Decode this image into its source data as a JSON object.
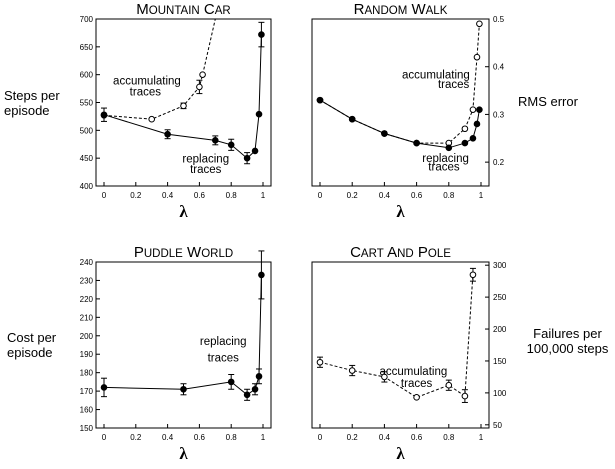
{
  "chart_data": [
    {
      "id": "mc",
      "type": "line",
      "title": "MOUNTAIN CAR",
      "xlabel": "λ",
      "ylabel": "Steps per episode",
      "xlim": [
        0,
        1
      ],
      "ylim": [
        400,
        700
      ],
      "xticks": [
        "0",
        "0.2",
        "0.4",
        "0.6",
        "0.8",
        "1"
      ],
      "yticks": [
        "400",
        "450",
        "500",
        "550",
        "600",
        "650",
        "700"
      ],
      "series": [
        {
          "name": "accumulating traces",
          "style": "dashed-open",
          "x": [
            0,
            0.3,
            0.5,
            0.6,
            0.62,
            0.7
          ],
          "y": [
            527,
            520,
            544,
            578,
            600,
            700
          ],
          "err": [
            0,
            0,
            5,
            12,
            0,
            0
          ]
        },
        {
          "name": "replacing traces",
          "style": "solid-filled",
          "x": [
            0,
            0.4,
            0.7,
            0.8,
            0.9,
            0.95,
            0.975,
            0.99
          ],
          "y": [
            528,
            493,
            482,
            474,
            450,
            463,
            529,
            672
          ],
          "err": [
            12,
            8,
            8,
            10,
            10,
            0,
            0,
            22
          ]
        }
      ],
      "annotations": [
        {
          "text": "accumulating",
          "x": 0.27,
          "y": 582
        },
        {
          "text": "traces",
          "x": 0.26,
          "y": 563
        },
        {
          "text": "replacing",
          "x": 0.64,
          "y": 442
        },
        {
          "text": "traces",
          "x": 0.64,
          "y": 423
        }
      ]
    },
    {
      "id": "rw",
      "type": "line",
      "title": "RANDOM WALK",
      "xlabel": "λ",
      "ylabel": "RMS error",
      "y_axis_side": "right",
      "xlim": [
        0,
        1
      ],
      "ylim": [
        0.15,
        0.5
      ],
      "yrange": [
        0.15,
        0.5
      ],
      "xticks": [
        "0",
        "0.2",
        "0.4",
        "0.6",
        "0.8",
        "1"
      ],
      "yticks": [
        "0.2",
        "0.3",
        "0.4",
        "0.5"
      ],
      "series": [
        {
          "name": "accumulating traces",
          "style": "dashed-open",
          "x": [
            0,
            0.2,
            0.4,
            0.6,
            0.8,
            0.9,
            0.95,
            0.975,
            0.99
          ],
          "y": [
            0.33,
            0.29,
            0.26,
            0.24,
            0.24,
            0.27,
            0.31,
            0.42,
            0.49
          ],
          "err": [
            0,
            0,
            0,
            0,
            0,
            0,
            0,
            0,
            0
          ]
        },
        {
          "name": "replacing traces",
          "style": "solid-filled",
          "x": [
            0,
            0.2,
            0.4,
            0.6,
            0.8,
            0.9,
            0.95,
            0.975,
            0.99
          ],
          "y": [
            0.33,
            0.29,
            0.26,
            0.24,
            0.23,
            0.24,
            0.25,
            0.28,
            0.31
          ],
          "err": [
            0,
            0,
            0,
            0,
            0,
            0,
            0,
            0,
            0
          ]
        }
      ],
      "annotations": [
        {
          "text": "accumulating",
          "x": 0.72,
          "y": 0.375
        },
        {
          "text": "traces",
          "x": 0.83,
          "y": 0.355
        },
        {
          "text": "replacing",
          "x": 0.78,
          "y": 0.2
        },
        {
          "text": "traces",
          "x": 0.77,
          "y": 0.182
        }
      ]
    },
    {
      "id": "pw",
      "type": "line",
      "title": "PUDDLE WORLD",
      "xlabel": "λ",
      "ylabel": "Cost per episode",
      "xlim": [
        0,
        1
      ],
      "ylim": [
        150,
        240
      ],
      "xticks": [
        "0",
        "0.2",
        "0.4",
        "0.6",
        "0.8",
        "1"
      ],
      "yticks": [
        "150",
        "160",
        "170",
        "180",
        "190",
        "200",
        "210",
        "220",
        "230",
        "240"
      ],
      "series": [
        {
          "name": "replacing traces",
          "style": "solid-filled",
          "x": [
            0,
            0.5,
            0.8,
            0.9,
            0.95,
            0.975,
            0.99
          ],
          "y": [
            172,
            171,
            175,
            168,
            171,
            178,
            233
          ],
          "err": [
            5,
            3,
            4,
            3,
            3,
            4,
            13
          ]
        }
      ],
      "annotations": [
        {
          "text": "replacing",
          "x": 0.75,
          "y": 195
        },
        {
          "text": "traces",
          "x": 0.75,
          "y": 186
        }
      ]
    },
    {
      "id": "cp",
      "type": "line",
      "title": "CART AND POLE",
      "xlabel": "λ",
      "ylabel": "Failures per 100,000 steps",
      "y_axis_side": "right",
      "xlim": [
        0,
        1
      ],
      "ylim": [
        50,
        300
      ],
      "yrange": [
        45,
        305
      ],
      "xticks": [
        "0",
        "0.2",
        "0.4",
        "0.6",
        "0.8",
        "1"
      ],
      "yticks": [
        "50",
        "100",
        "150",
        "200",
        "250",
        "300"
      ],
      "series": [
        {
          "name": "accumulating traces",
          "style": "dashed-open",
          "x": [
            0,
            0.2,
            0.4,
            0.6,
            0.8,
            0.9,
            0.95
          ],
          "y": [
            148,
            135,
            125,
            93,
            112,
            95,
            285
          ],
          "err": [
            8,
            8,
            8,
            0,
            8,
            10,
            10
          ]
        }
      ],
      "annotations": [
        {
          "text": "accumulating",
          "x": 0.58,
          "y": 128
        },
        {
          "text": "traces",
          "x": 0.6,
          "y": 109
        }
      ]
    }
  ],
  "side_labels": {
    "mc": [
      "Steps per",
      "episode"
    ],
    "rw": [
      "RMS error"
    ],
    "pw": [
      "Cost per",
      "episode"
    ],
    "cp": [
      "Failures per",
      "100,000 steps"
    ]
  }
}
